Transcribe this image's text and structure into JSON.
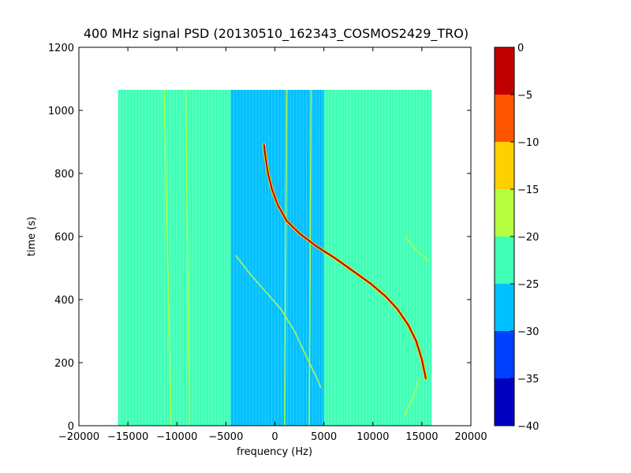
{
  "chart_data": {
    "type": "heatmap",
    "title": "400 MHz signal PSD (20130510_162343_COSMOS2429_TRO)",
    "xlabel": "frequency (Hz)",
    "ylabel": "time (s)",
    "xlim": [
      -20000,
      20000
    ],
    "ylim": [
      0,
      1200
    ],
    "xticks": [
      -20000,
      -15000,
      -10000,
      -5000,
      0,
      5000,
      10000,
      15000,
      20000
    ],
    "yticks": [
      0,
      200,
      400,
      600,
      800,
      1000,
      1200
    ],
    "data_extent": {
      "x": [
        -16000,
        16000
      ],
      "y": [
        0,
        1065
      ]
    },
    "colorbar": {
      "range": [
        -40,
        0
      ],
      "ticks": [
        0,
        -5,
        -10,
        -15,
        -20,
        -25,
        -30,
        -35,
        -40
      ],
      "levels": [
        {
          "from": -40,
          "to": -35,
          "color": "#0000c0"
        },
        {
          "from": -35,
          "to": -30,
          "color": "#0040ff"
        },
        {
          "from": -30,
          "to": -25,
          "color": "#00c0ff"
        },
        {
          "from": -25,
          "to": -20,
          "color": "#40ffb6"
        },
        {
          "from": -20,
          "to": -15,
          "color": "#b6ff40"
        },
        {
          "from": -15,
          "to": -10,
          "color": "#ffd000"
        },
        {
          "from": -10,
          "to": -5,
          "color": "#ff5500"
        },
        {
          "from": -5,
          "to": 0,
          "color": "#c00000"
        }
      ]
    },
    "background_level": -22.5,
    "bands": [
      {
        "name": "noise-floor-low",
        "x": [
          -4500,
          5000
        ],
        "level": -27.5
      }
    ],
    "signal_track": {
      "level": -2.5,
      "points": [
        [
          -1100,
          890
        ],
        [
          -1000,
          860
        ],
        [
          -700,
          800
        ],
        [
          -300,
          750
        ],
        [
          300,
          700
        ],
        [
          1200,
          650
        ],
        [
          2500,
          610
        ],
        [
          4200,
          570
        ],
        [
          6200,
          530
        ],
        [
          8000,
          490
        ],
        [
          9800,
          450
        ],
        [
          11300,
          410
        ],
        [
          12500,
          370
        ],
        [
          13600,
          320
        ],
        [
          14400,
          270
        ],
        [
          15000,
          210
        ],
        [
          15400,
          150
        ]
      ]
    },
    "faint_lines": [
      {
        "level": -17.5,
        "points": [
          [
            -11300,
            1065
          ],
          [
            -10600,
            0
          ]
        ]
      },
      {
        "level": -17.5,
        "points": [
          [
            -9100,
            1065
          ],
          [
            -8700,
            0
          ]
        ]
      },
      {
        "level": -17.5,
        "points": [
          [
            1200,
            1065
          ],
          [
            1000,
            0
          ]
        ]
      },
      {
        "level": -17.5,
        "points": [
          [
            3700,
            1065
          ],
          [
            3500,
            0
          ]
        ]
      },
      {
        "level": -17.5,
        "points": [
          [
            -4000,
            540
          ],
          [
            -2500,
            480
          ],
          [
            -800,
            420
          ],
          [
            600,
            370
          ],
          [
            2000,
            300
          ],
          [
            3200,
            220
          ],
          [
            4300,
            150
          ],
          [
            4700,
            120
          ]
        ]
      },
      {
        "level": -17.5,
        "points": [
          [
            13300,
            600
          ],
          [
            14300,
            560
          ],
          [
            15800,
            520
          ]
        ]
      },
      {
        "level": -17.5,
        "points": [
          [
            14800,
            150
          ],
          [
            14100,
            90
          ],
          [
            13200,
            30
          ]
        ]
      }
    ]
  }
}
